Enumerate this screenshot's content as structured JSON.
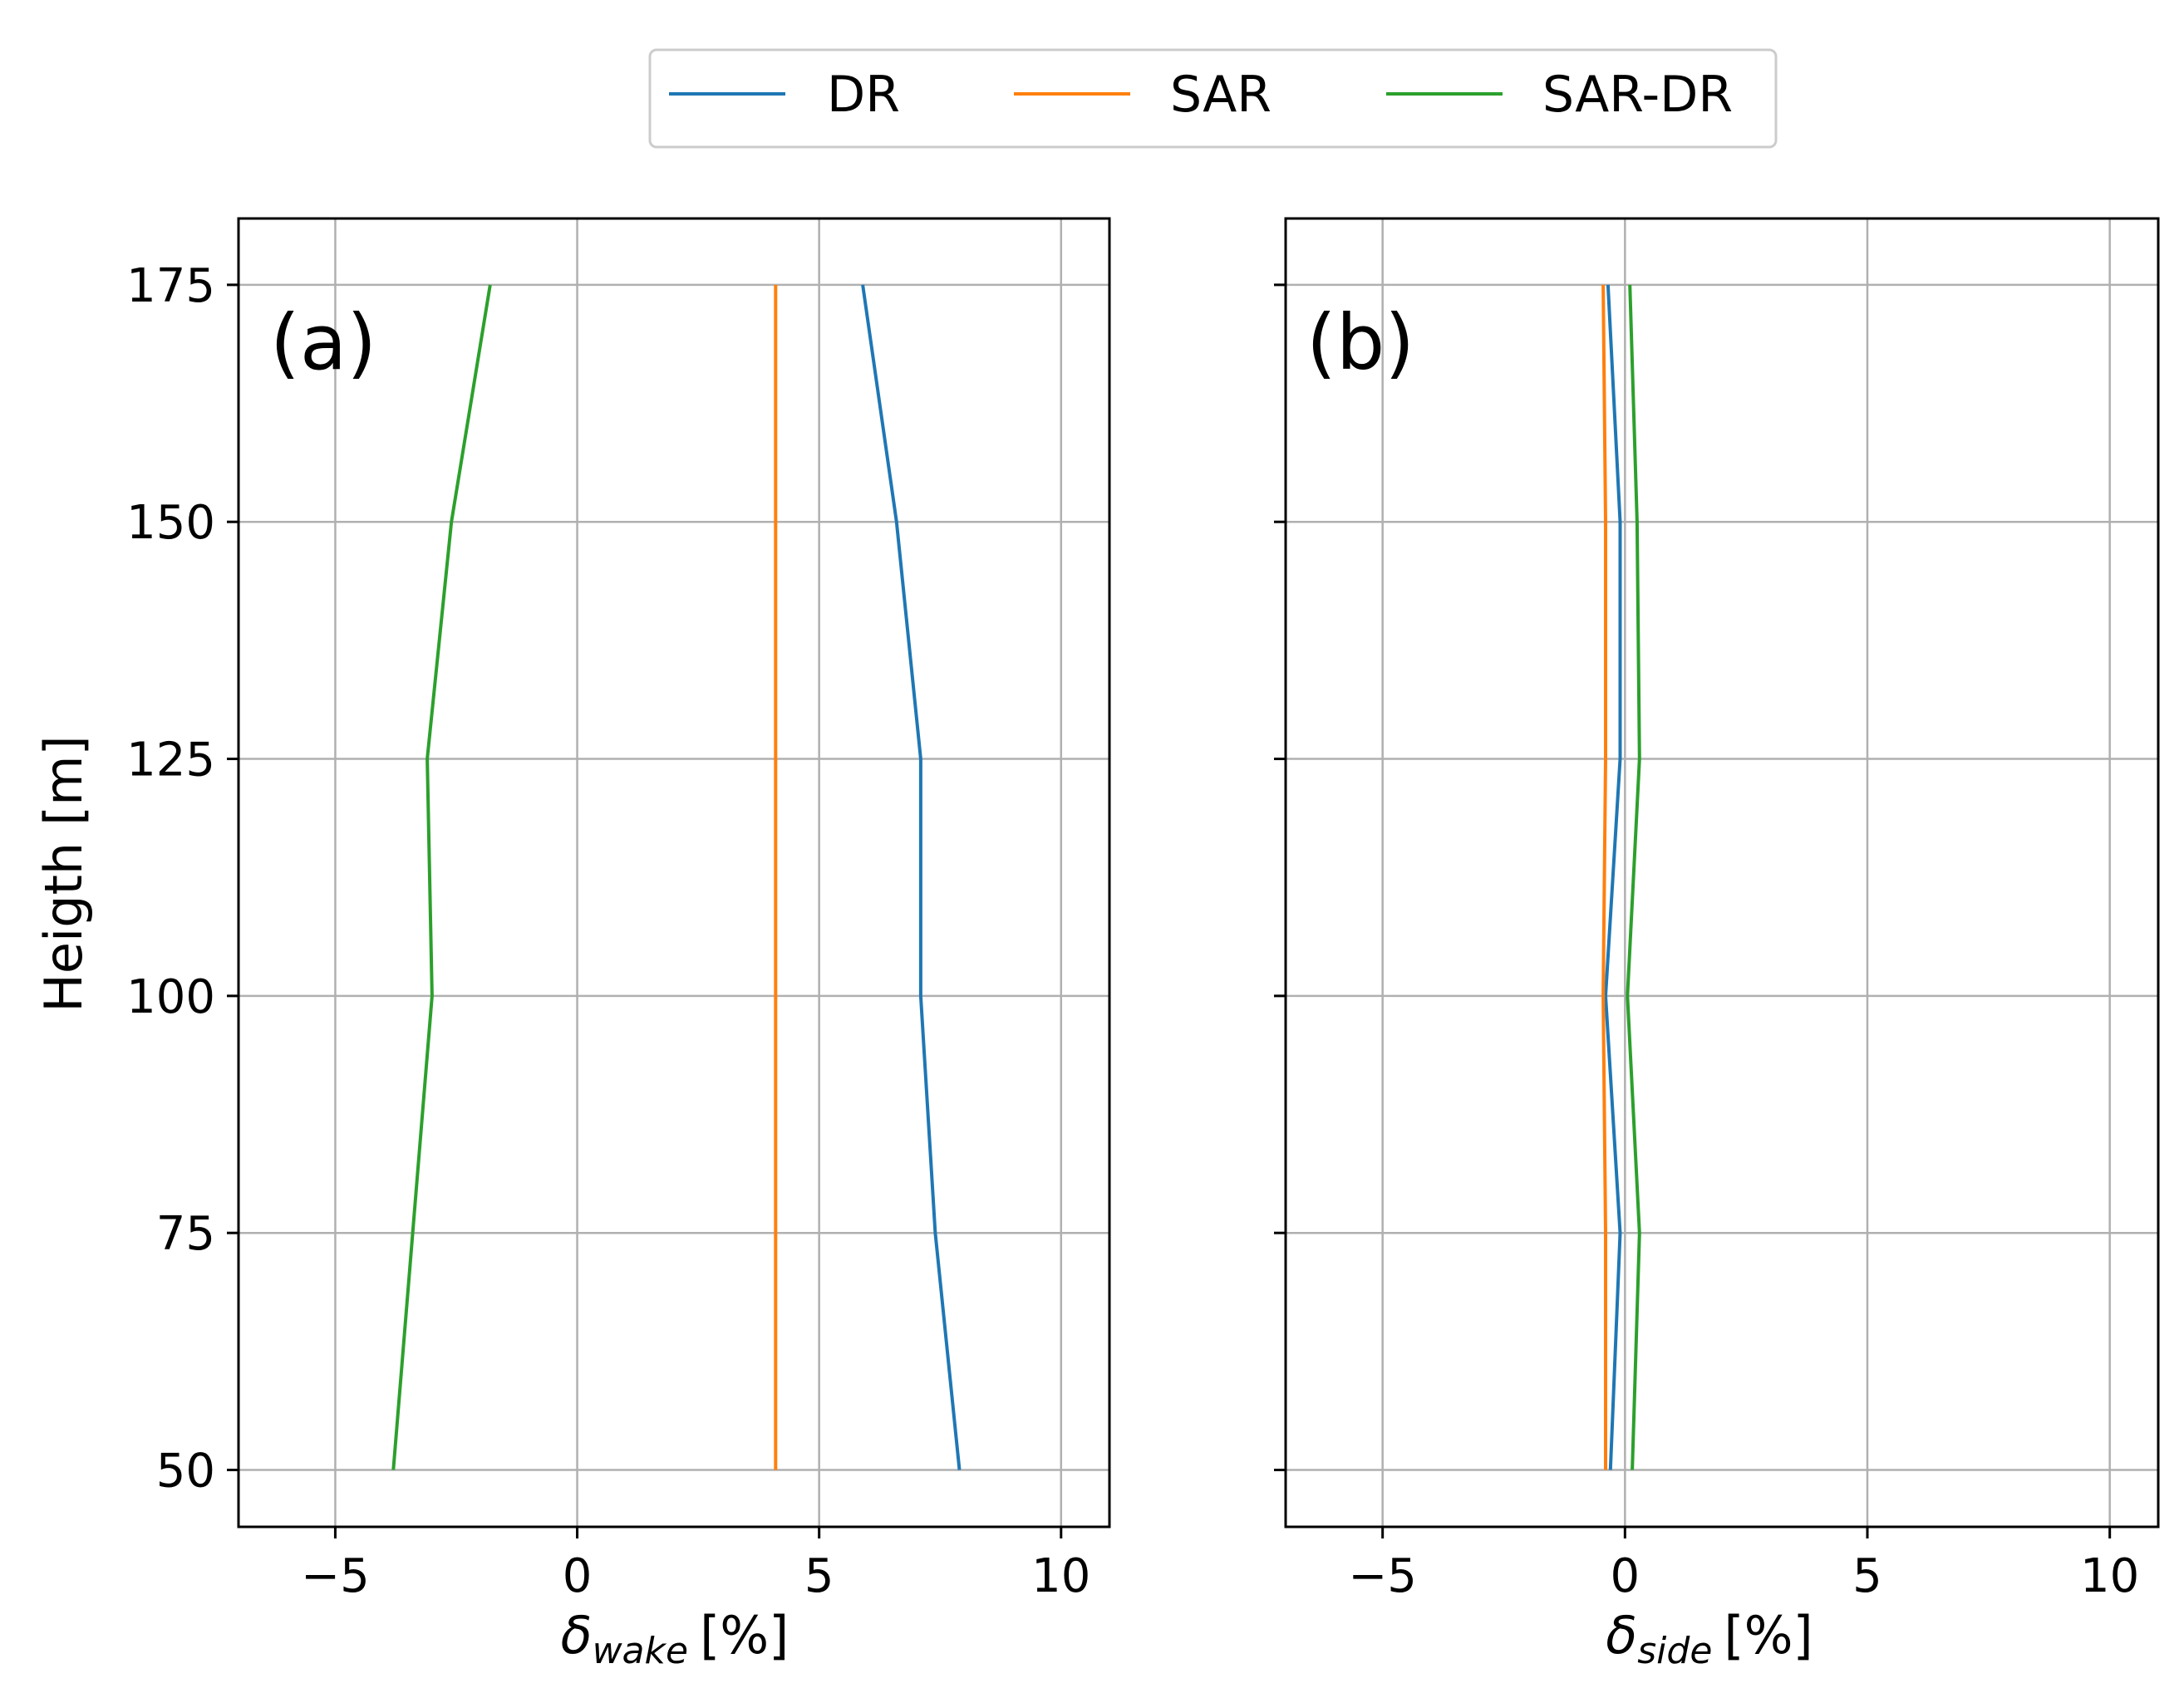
{
  "chart_data": {
    "type": "line",
    "legend": {
      "placement": "top-center",
      "entries": [
        {
          "name": "DR",
          "color": "#1f77b4"
        },
        {
          "name": "SAR",
          "color": "#ff7f0e"
        },
        {
          "name": "SAR-DR",
          "color": "#2ca02c"
        }
      ]
    },
    "shared_ylabel": "Heigth [m]",
    "ylim": [
      44,
      182
    ],
    "yticks": [
      50,
      75,
      100,
      125,
      150,
      175
    ],
    "ytick_labels": [
      "50",
      "75",
      "100",
      "125",
      "150",
      "175"
    ],
    "xticks": [
      -5,
      0,
      5,
      10
    ],
    "xtick_labels": [
      "−5",
      "0",
      "5",
      "10"
    ],
    "grid": true,
    "panels": [
      {
        "panel_label": "(a)",
        "xlabel_symbol": "δ",
        "xlabel_subscript": "wake",
        "xlabel_unit": "[%]",
        "xlim": [
          -7,
          11
        ],
        "series": [
          {
            "name": "DR",
            "x": [
              7.9,
              7.4,
              7.1,
              7.1,
              6.6,
              5.9
            ],
            "y": [
              50,
              75,
              100,
              125,
              150,
              175
            ]
          },
          {
            "name": "SAR",
            "x": [
              4.1,
              4.1,
              4.1,
              4.1,
              4.1,
              4.1
            ],
            "y": [
              50,
              75,
              100,
              125,
              150,
              175
            ]
          },
          {
            "name": "SAR-DR",
            "x": [
              -3.8,
              -3.4,
              -3.0,
              -3.1,
              -2.6,
              -1.8
            ],
            "y": [
              50,
              75,
              100,
              125,
              150,
              175
            ]
          }
        ]
      },
      {
        "panel_label": "(b)",
        "xlabel_symbol": "δ",
        "xlabel_subscript": "side",
        "xlabel_unit": "[%]",
        "xlim": [
          -7,
          11
        ],
        "series": [
          {
            "name": "DR",
            "x": [
              -0.3,
              -0.1,
              -0.4,
              -0.1,
              -0.1,
              -0.35
            ],
            "y": [
              50,
              75,
              100,
              125,
              150,
              175
            ]
          },
          {
            "name": "SAR",
            "x": [
              -0.4,
              -0.4,
              -0.45,
              -0.4,
              -0.4,
              -0.45
            ],
            "y": [
              50,
              75,
              100,
              125,
              150,
              175
            ]
          },
          {
            "name": "SAR-DR",
            "x": [
              0.15,
              0.3,
              0.05,
              0.3,
              0.25,
              0.1
            ],
            "y": [
              50,
              75,
              100,
              125,
              150,
              175
            ]
          }
        ]
      }
    ]
  }
}
